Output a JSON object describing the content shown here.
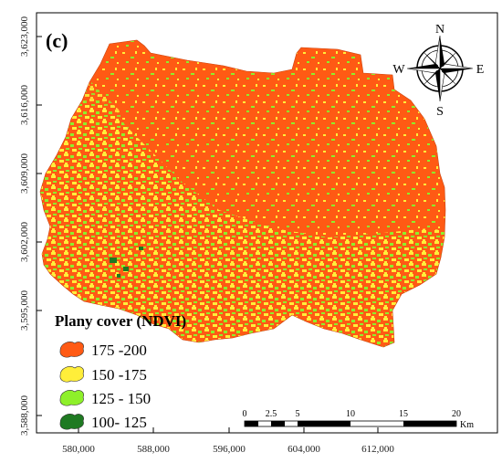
{
  "panel_label": "(c)",
  "legend": {
    "title": "Plany cover (NDVI)",
    "classes": [
      {
        "label": "175 -200",
        "color": "#ff5a14"
      },
      {
        "label": "150 -175",
        "color": "#ffee3a"
      },
      {
        "label": "125 - 150",
        "color": "#8ef02a"
      },
      {
        "label": "100- 125",
        "color": "#1f7a22"
      }
    ]
  },
  "y_ticks": [
    "3,623,000",
    "3,616,000",
    "3,609,000",
    "3,602,000",
    "3,595,000",
    "3,588,000"
  ],
  "x_ticks": [
    "580,000",
    "588,000",
    "596,000",
    "604,000",
    "612,000"
  ],
  "north_arrow": {
    "n": "N",
    "s": "S",
    "e": "E",
    "w": "W",
    "icon": "compass-rose-icon"
  },
  "scale_bar": {
    "labels": [
      "0",
      "2.5",
      "5",
      "10",
      "15",
      "20"
    ],
    "unit": "Km"
  },
  "colors": {
    "frame": "#000000",
    "background": "#ffffff"
  }
}
